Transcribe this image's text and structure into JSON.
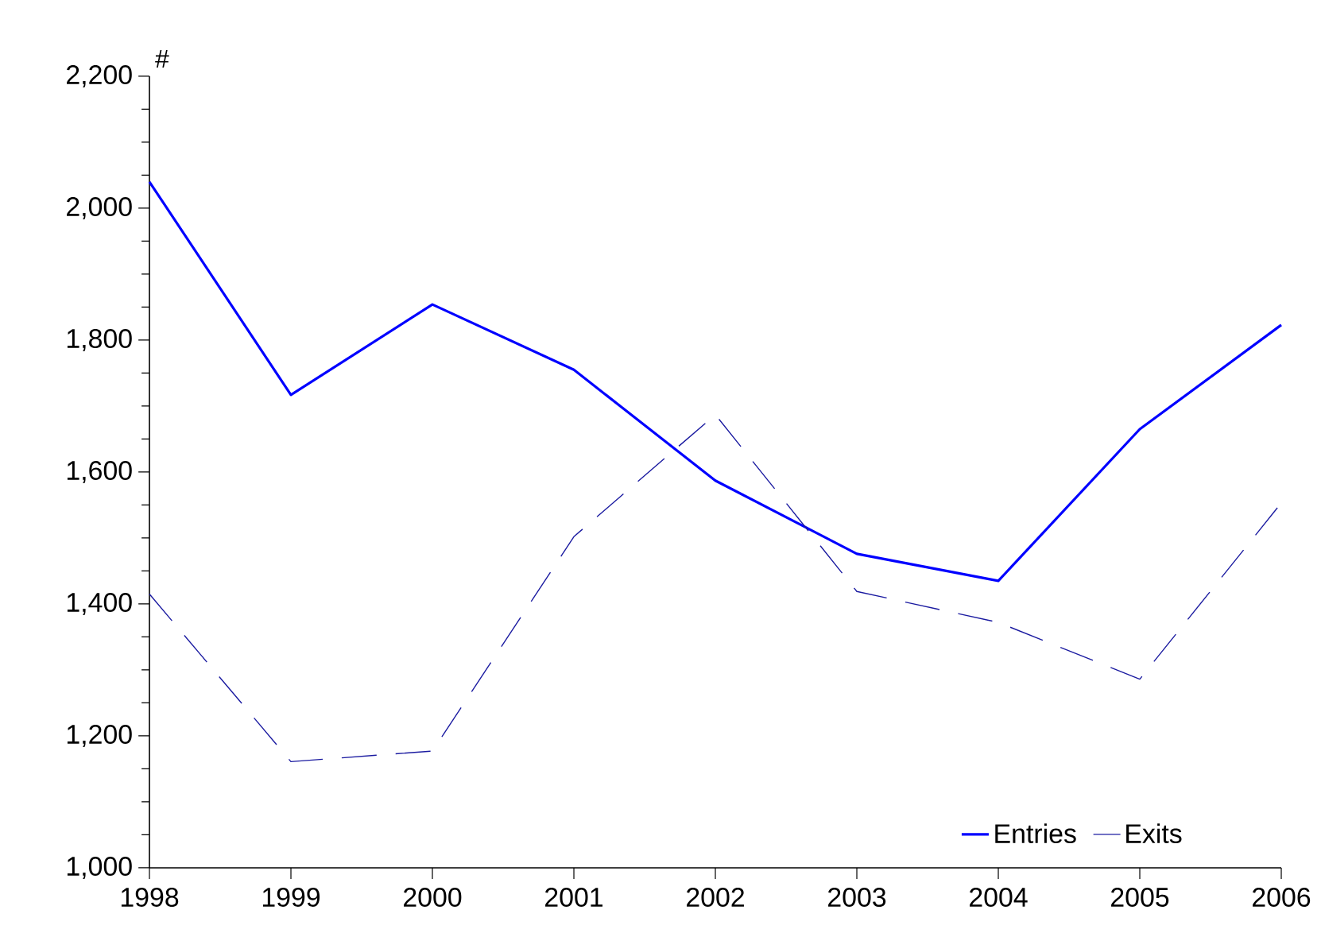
{
  "chart_data": {
    "type": "line",
    "ylabel": "#",
    "x": [
      1998,
      1999,
      2000,
      2001,
      2002,
      2003,
      2004,
      2005,
      2006
    ],
    "series": [
      {
        "name": "Entries",
        "color": "#0000ff",
        "line_style": "solid",
        "values": [
          2040,
          1717,
          1854,
          1755,
          1587,
          1476,
          1435,
          1665,
          1823
        ]
      },
      {
        "name": "Exits",
        "color": "#1a1aa0",
        "line_style": "dashed",
        "values": [
          1415,
          1161,
          1177,
          1502,
          1687,
          1419,
          1372,
          1286,
          1553
        ]
      }
    ],
    "xlim": [
      1998,
      2006
    ],
    "xticks": [
      1998,
      1999,
      2000,
      2001,
      2002,
      2003,
      2004,
      2005,
      2006
    ],
    "ylim": [
      1000,
      2200
    ],
    "yticks": [
      {
        "value": 1000,
        "label": "1,000"
      },
      {
        "value": 1200,
        "label": "1,200"
      },
      {
        "value": 1400,
        "label": "1,400"
      },
      {
        "value": 1600,
        "label": "1,600"
      },
      {
        "value": 1800,
        "label": "1,800"
      },
      {
        "value": 2000,
        "label": "2,000"
      },
      {
        "value": 2200,
        "label": "2,200"
      }
    ],
    "grid": false,
    "legend": "bottom right",
    "marker": "none"
  }
}
